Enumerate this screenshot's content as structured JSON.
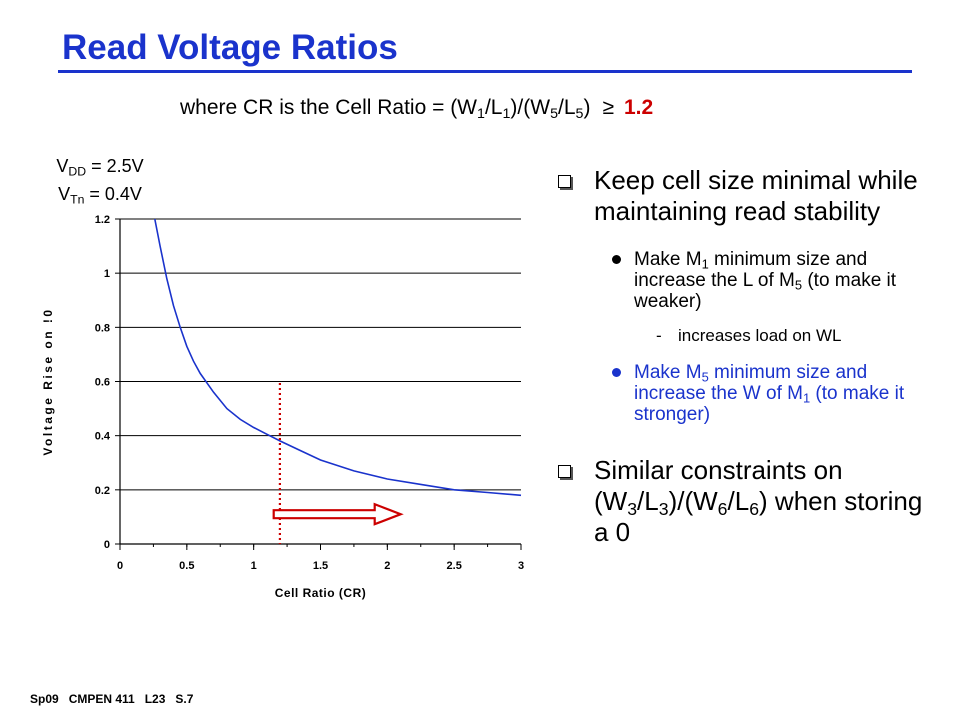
{
  "slide": {
    "title": "Read Voltage Ratios",
    "subtitle_text": "where CR is the Cell Ratio = (W",
    "subtitle_ge": "≥",
    "subtitle_value": "1.2",
    "params": {
      "vdd": "V",
      "vdd_sub": "DD",
      "vdd_val": " = 2.5V",
      "vtn": "V",
      "vtn_sub": "Tn",
      "vtn_val": " = 0.4V"
    },
    "bullets": {
      "b1": "Keep cell size minimal while maintaining read stability",
      "b1a_a": "Make M",
      "b1a_b": " minimum size and increase the L of M",
      "b1a_c": " (to make it weaker)",
      "b1a_sub_dash": "-",
      "b1a_sub": "increases load on WL",
      "b1b_a": "Make M",
      "b1b_b": " minimum size and increase the W of M",
      "b1b_c": " (to make it stronger)",
      "b2_a": "Similar constraints on (W",
      "b2_b": ")/(W",
      "b2_c": ") when storing a 0"
    },
    "footer": [
      "Sp09",
      "CMPEN 411",
      "L23",
      "S.7"
    ]
  },
  "chart_data": {
    "type": "line",
    "xlabel": "Cell Ratio (CR)",
    "ylabel": "Voltage Rise on !0",
    "xlim": [
      0,
      3
    ],
    "ylim": [
      0,
      1.2
    ],
    "xticks": [
      "0",
      "0.5",
      "1",
      "1.5",
      "2",
      "2.5",
      "3"
    ],
    "yticks": [
      "0",
      "0.2",
      "0.4",
      "0.6",
      "0.8",
      "1",
      "1.2"
    ],
    "grid": "horizontal",
    "series": [
      {
        "color": "#1a33cc",
        "x": [
          0.26,
          0.3,
          0.35,
          0.4,
          0.45,
          0.5,
          0.55,
          0.6,
          0.7,
          0.8,
          0.9,
          1.0,
          1.1,
          1.2,
          1.35,
          1.5,
          1.75,
          2.0,
          2.25,
          2.5,
          2.75,
          3.0
        ],
        "y": [
          1.2,
          1.1,
          0.98,
          0.88,
          0.8,
          0.73,
          0.675,
          0.63,
          0.56,
          0.5,
          0.46,
          0.43,
          0.405,
          0.38,
          0.345,
          0.31,
          0.27,
          0.24,
          0.22,
          0.2,
          0.19,
          0.18
        ]
      }
    ],
    "marker_line": {
      "x": 1.2,
      "color": "#cc0000",
      "style": "dotted"
    },
    "arrow": {
      "x_start": 1.15,
      "x_end": 2.1,
      "y": 0.11,
      "color": "#cc0000"
    }
  }
}
